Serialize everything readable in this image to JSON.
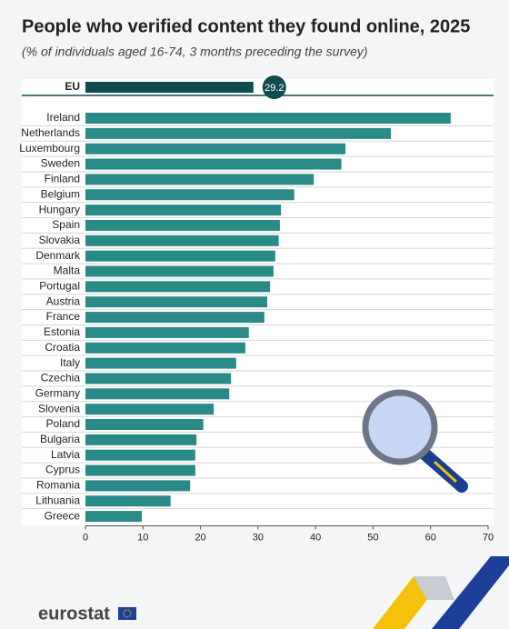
{
  "chart_data": {
    "type": "hbar",
    "title": "People who verified content they found online, 2025",
    "subtitle": "(% of individuals aged 16-74, 3 months preceding the survey)",
    "highlight": {
      "category": "EU",
      "value": 29.2,
      "color": "#0f4c4f"
    },
    "categories": [
      "Ireland",
      "Netherlands",
      "Luxembourg",
      "Sweden",
      "Finland",
      "Belgium",
      "Hungary",
      "Spain",
      "Slovakia",
      "Denmark",
      "Malta",
      "Portugal",
      "Austria",
      "France",
      "Estonia",
      "Croatia",
      "Italy",
      "Czechia",
      "Germany",
      "Slovenia",
      "Poland",
      "Bulgaria",
      "Latvia",
      "Cyprus",
      "Romania",
      "Lithuania",
      "Greece"
    ],
    "values": [
      63.5,
      53.1,
      45.2,
      44.5,
      39.7,
      36.3,
      34.0,
      33.8,
      33.6,
      33.0,
      32.7,
      32.1,
      31.6,
      31.1,
      28.4,
      27.8,
      26.2,
      25.3,
      25.0,
      22.3,
      20.5,
      19.3,
      19.1,
      19.1,
      18.2,
      14.8,
      9.8
    ],
    "color": "#2a8a87",
    "xlim": [
      0,
      70
    ],
    "xticks": [
      0,
      10,
      20,
      30,
      40,
      50,
      60,
      70
    ]
  },
  "footer": "eurostat"
}
